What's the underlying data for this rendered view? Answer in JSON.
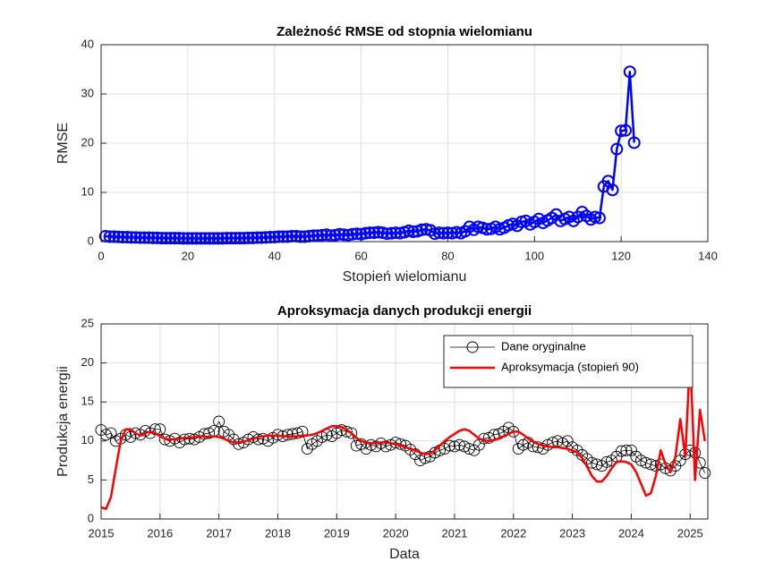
{
  "chart_data": [
    {
      "type": "line",
      "title": "Zależność RMSE od stopnia wielomianu",
      "xlabel": "Stopień wielomianu",
      "ylabel": "RMSE",
      "x": [
        1,
        2,
        3,
        4,
        5,
        6,
        7,
        8,
        9,
        10,
        11,
        12,
        13,
        14,
        15,
        16,
        17,
        18,
        19,
        20,
        21,
        22,
        23,
        24,
        25,
        26,
        27,
        28,
        29,
        30,
        31,
        32,
        33,
        34,
        35,
        36,
        37,
        38,
        39,
        40,
        41,
        42,
        43,
        44,
        45,
        46,
        47,
        48,
        49,
        50,
        51,
        52,
        53,
        54,
        55,
        56,
        57,
        58,
        59,
        60,
        61,
        62,
        63,
        64,
        65,
        66,
        67,
        68,
        69,
        70,
        71,
        72,
        73,
        74,
        75,
        76,
        77,
        78,
        79,
        80,
        81,
        82,
        83,
        84,
        85,
        86,
        87,
        88,
        89,
        90,
        91,
        92,
        93,
        94,
        95,
        96,
        97,
        98,
        99,
        100,
        101,
        102,
        103,
        104,
        105,
        106,
        107,
        108,
        109,
        110,
        111,
        112,
        113,
        114,
        115,
        116,
        117,
        118,
        119,
        120,
        121,
        122,
        123
      ],
      "series": [
        {
          "color": "#0000ff",
          "marker": "o",
          "linewidth": 2.5,
          "values": [
            1.1,
            1.0,
            1.0,
            0.95,
            0.9,
            0.9,
            0.85,
            0.85,
            0.8,
            0.8,
            0.8,
            0.75,
            0.75,
            0.7,
            0.7,
            0.7,
            0.7,
            0.7,
            0.65,
            0.65,
            0.65,
            0.65,
            0.65,
            0.65,
            0.65,
            0.65,
            0.65,
            0.65,
            0.7,
            0.7,
            0.7,
            0.7,
            0.7,
            0.75,
            0.75,
            0.8,
            0.8,
            0.85,
            0.9,
            0.9,
            1.0,
            1.0,
            1.0,
            1.1,
            1.1,
            1.0,
            1.0,
            1.1,
            1.2,
            1.2,
            1.3,
            1.4,
            1.2,
            1.3,
            1.5,
            1.4,
            1.3,
            1.5,
            1.6,
            1.5,
            1.7,
            1.8,
            1.8,
            1.9,
            1.8,
            1.6,
            1.7,
            1.8,
            1.7,
            1.9,
            2.2,
            2.0,
            2.1,
            2.4,
            2.5,
            2.3,
            1.6,
            1.8,
            1.7,
            1.8,
            1.7,
            1.9,
            1.7,
            2.1,
            3.0,
            2.4,
            3.0,
            2.8,
            2.5,
            2.6,
            3.0,
            2.5,
            2.8,
            3.3,
            3.6,
            3.2,
            4.0,
            4.2,
            3.5,
            4.0,
            4.6,
            3.8,
            4.3,
            4.8,
            5.5,
            4.2,
            4.6,
            5.0,
            4.2,
            5.0,
            6.0,
            5.2,
            4.5,
            5.0,
            4.8,
            11.2,
            12.3,
            10.5,
            18.8,
            22.5,
            22.6,
            34.5,
            20.1
          ]
        }
      ],
      "xlim": [
        0,
        140
      ],
      "xticks": [
        0,
        20,
        40,
        60,
        80,
        100,
        120,
        140
      ],
      "ylim": [
        0,
        40
      ],
      "yticks": [
        0,
        10,
        20,
        30,
        40
      ],
      "grid": true,
      "legend": false
    },
    {
      "type": "line",
      "title": "Aproksymacja danych produkcji energii",
      "xlabel": "Data",
      "ylabel": "Produkcja energii",
      "x": [
        2015,
        2015.083,
        2015.167,
        2015.25,
        2015.333,
        2015.417,
        2015.5,
        2015.583,
        2015.667,
        2015.75,
        2015.833,
        2015.917,
        2016,
        2016.083,
        2016.167,
        2016.25,
        2016.333,
        2016.417,
        2016.5,
        2016.583,
        2016.667,
        2016.75,
        2016.833,
        2016.917,
        2017,
        2017.083,
        2017.167,
        2017.25,
        2017.333,
        2017.417,
        2017.5,
        2017.583,
        2017.667,
        2017.75,
        2017.833,
        2017.917,
        2018,
        2018.083,
        2018.167,
        2018.25,
        2018.333,
        2018.417,
        2018.5,
        2018.583,
        2018.667,
        2018.75,
        2018.833,
        2018.917,
        2019,
        2019.083,
        2019.167,
        2019.25,
        2019.333,
        2019.417,
        2019.5,
        2019.583,
        2019.667,
        2019.75,
        2019.833,
        2019.917,
        2020,
        2020.083,
        2020.167,
        2020.25,
        2020.333,
        2020.417,
        2020.5,
        2020.583,
        2020.667,
        2020.75,
        2020.833,
        2020.917,
        2021,
        2021.083,
        2021.167,
        2021.25,
        2021.333,
        2021.417,
        2021.5,
        2021.583,
        2021.667,
        2021.75,
        2021.833,
        2021.917,
        2022,
        2022.083,
        2022.167,
        2022.25,
        2022.333,
        2022.417,
        2022.5,
        2022.583,
        2022.667,
        2022.75,
        2022.833,
        2022.917,
        2023,
        2023.083,
        2023.167,
        2023.25,
        2023.333,
        2023.417,
        2023.5,
        2023.583,
        2023.667,
        2023.75,
        2023.833,
        2023.917,
        2024,
        2024.083,
        2024.167,
        2024.25,
        2024.333,
        2024.417,
        2024.5,
        2024.583,
        2024.667,
        2024.75,
        2024.833,
        2024.917,
        2025,
        2025.083,
        2025.167,
        2025.25
      ],
      "series": [
        {
          "name": "Dane oryginalne",
          "color": "#000000",
          "marker": "o",
          "linewidth": 0.8,
          "values": [
            11.4,
            10.8,
            11.0,
            10.0,
            10.3,
            10.8,
            10.5,
            11.0,
            10.8,
            11.3,
            11.0,
            11.5,
            11.5,
            10.2,
            10.0,
            10.3,
            9.8,
            10.2,
            10.3,
            10.2,
            10.5,
            10.9,
            11.0,
            11.3,
            12.5,
            11.2,
            10.8,
            10.2,
            9.6,
            9.8,
            10.2,
            10.5,
            10.2,
            10.3,
            10.0,
            10.4,
            10.8,
            10.6,
            10.8,
            10.9,
            11.0,
            11.2,
            9.0,
            9.6,
            10.0,
            10.5,
            10.8,
            10.6,
            11.0,
            11.4,
            11.2,
            11.0,
            9.4,
            9.6,
            9.0,
            9.5,
            9.3,
            9.7,
            9.3,
            9.5,
            9.8,
            9.6,
            9.4,
            8.9,
            8.3,
            7.5,
            7.8,
            8.0,
            8.5,
            8.8,
            9.0,
            9.4,
            9.3,
            9.5,
            9.3,
            9.0,
            8.8,
            9.5,
            10.3,
            10.4,
            10.8,
            10.9,
            11.2,
            11.7,
            11.2,
            9.0,
            9.5,
            9.8,
            9.3,
            9.2,
            9.0,
            9.5,
            9.8,
            10.0,
            9.7,
            10.0,
            9.2,
            8.8,
            8.2,
            7.7,
            7.2,
            7.0,
            6.8,
            7.3,
            7.5,
            8.0,
            8.7,
            8.8,
            8.8,
            8.0,
            7.5,
            7.2,
            7.0,
            6.8,
            7.0,
            6.5,
            6.2,
            6.8,
            7.5,
            8.3,
            8.8,
            8.5,
            7.2,
            5.9
          ]
        },
        {
          "name": "Aproksymacja (stopień 90)",
          "color": "#ff0000",
          "marker": "none",
          "linewidth": 2.5,
          "values": [
            1.5,
            1.3,
            2.8,
            6.5,
            10,
            11.5,
            11.5,
            11,
            10.7,
            11,
            11.2,
            11.0,
            10.6,
            10.3,
            10.2,
            10.2,
            10.3,
            10.4,
            10.4,
            10.5,
            10.6,
            10.6,
            10.5,
            10.6,
            10.5,
            10.3,
            10.0,
            9.8,
            9.8,
            9.9,
            10.1,
            10.3,
            10.5,
            10.6,
            10.7,
            10.7,
            10.7,
            10.6,
            10.6,
            10.6,
            10.6,
            10.7,
            10.7,
            10.8,
            11.0,
            11.3,
            11.6,
            11.9,
            11.9,
            11.8,
            11.4,
            11.0,
            10.4,
            10.0,
            9.8,
            9.7,
            9.7,
            9.8,
            9.8,
            9.7,
            9.6,
            9.4,
            9.2,
            9.0,
            8.8,
            8.5,
            8.3,
            8.4,
            8.8,
            9.4,
            10.0,
            10.5,
            10.9,
            11.3,
            11.5,
            11.3,
            10.8,
            10.3,
            10.1,
            10.0,
            10.1,
            10.3,
            10.6,
            10.9,
            11.2,
            11.2,
            10.8,
            10.3,
            9.9,
            9.6,
            9.4,
            9.3,
            9.2,
            9.2,
            9.1,
            9.0,
            8.8,
            8.5,
            7.8,
            6.7,
            5.5,
            4.8,
            4.8,
            5.5,
            6.5,
            7.3,
            7.4,
            7.3,
            7.0,
            6.0,
            4.5,
            3.0,
            3.3,
            5.5,
            8.8,
            7.0,
            6.0,
            8.0,
            12.8,
            8.0,
            21.0,
            5.0,
            14.0,
            10.0
          ]
        }
      ],
      "xlim": [
        2015,
        2025.3
      ],
      "xticks": [
        2015,
        2016,
        2017,
        2018,
        2019,
        2020,
        2021,
        2022,
        2023,
        2024,
        2025
      ],
      "ylim": [
        0,
        25
      ],
      "yticks": [
        0,
        5,
        10,
        15,
        20,
        25
      ],
      "grid": true,
      "legend": true,
      "legend_loc": "upper right"
    }
  ]
}
